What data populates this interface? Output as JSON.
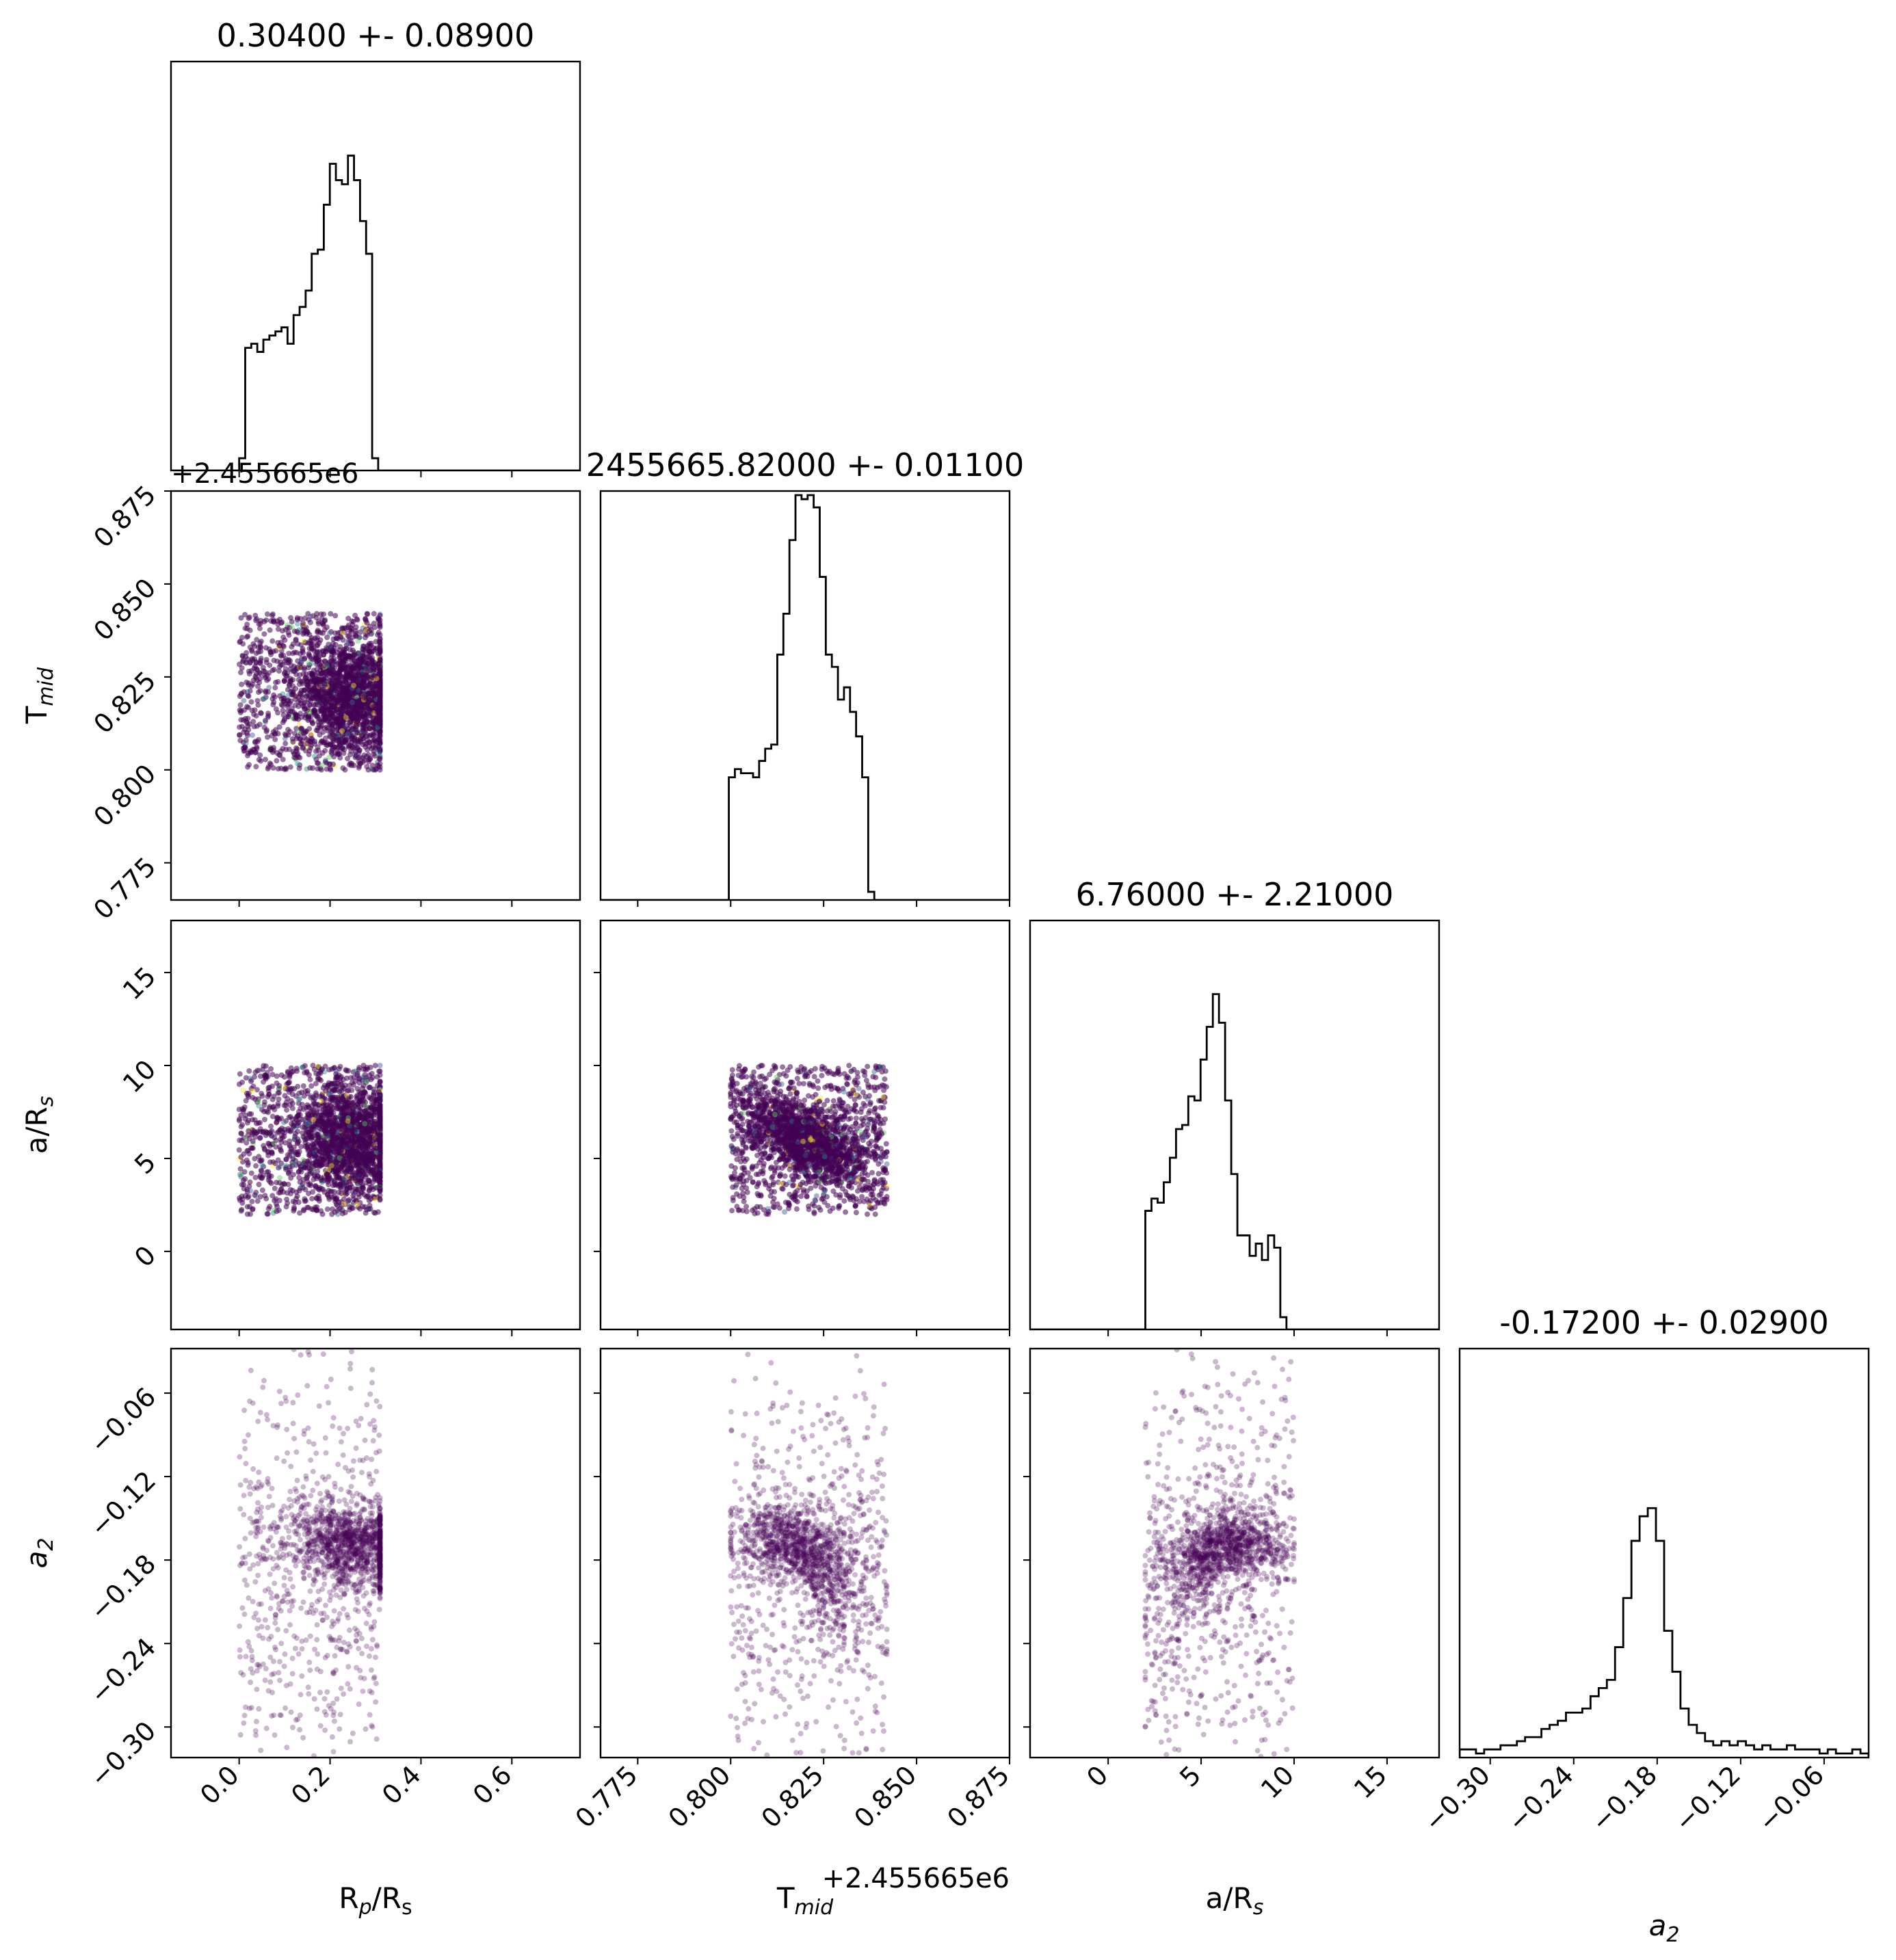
{
  "chart_data": {
    "type": "scatter",
    "layout": "corner",
    "colors": {
      "scatter_main": "#440154",
      "scatter_speckles": [
        "#3b528b",
        "#21918c",
        "#5ec962",
        "#fde725",
        "#31688e"
      ],
      "line": "#000000"
    },
    "parameters": [
      {
        "key": "rp",
        "label_base": "R",
        "label_sub": "p",
        "label_mid": "/R",
        "label_sub2": "s",
        "label_italic": false,
        "title": "0.30400 +- 0.08900",
        "range": [
          -0.15,
          0.75
        ],
        "ticks": [
          0.0,
          0.2,
          0.4,
          0.6
        ],
        "tick_labels": [
          "0.0",
          "0.2",
          "0.4",
          "0.6"
        ],
        "hist_bins": {
          "start": 0.0,
          "width": 0.0133,
          "counts": [
            0.03,
            0.3,
            0.31,
            0.29,
            0.32,
            0.33,
            0.34,
            0.35,
            0.31,
            0.38,
            0.4,
            0.44,
            0.53,
            0.54,
            0.65,
            0.75,
            0.71,
            0.7,
            0.77,
            0.71,
            0.61,
            0.53,
            0.03
          ]
        }
      },
      {
        "key": "tmid",
        "label_base": "T",
        "label_sub": "mid",
        "label_italic": false,
        "title": "2455665.82000 +- 0.01100",
        "offset_text": "+2.455665e6",
        "range": [
          0.765,
          0.875
        ],
        "ticks": [
          0.775,
          0.8,
          0.825,
          0.85,
          0.875
        ],
        "tick_labels": [
          "0.775",
          "0.800",
          "0.825",
          "0.850",
          "0.875"
        ],
        "hist_bins": {
          "start": 0.7995,
          "width": 0.00163,
          "counts": [
            0.3,
            0.32,
            0.31,
            0.31,
            0.3,
            0.34,
            0.37,
            0.38,
            0.6,
            0.7,
            0.88,
            0.99,
            0.98,
            0.99,
            0.96,
            0.79,
            0.6,
            0.57,
            0.49,
            0.52,
            0.46,
            0.4,
            0.3,
            0.02
          ]
        }
      },
      {
        "key": "ars",
        "label_base": "a/R",
        "label_sub": "s",
        "label_italic": false,
        "title": "6.76000 +- 2.21000",
        "range": [
          -4.2,
          17.8
        ],
        "ticks": [
          0,
          5,
          10,
          15
        ],
        "tick_labels": [
          "0",
          "5",
          "10",
          "15"
        ],
        "hist_bins": {
          "start": 2.0,
          "width": 0.33,
          "counts": [
            0.29,
            0.32,
            0.31,
            0.36,
            0.42,
            0.49,
            0.5,
            0.57,
            0.56,
            0.66,
            0.74,
            0.82,
            0.75,
            0.56,
            0.38,
            0.23,
            0.23,
            0.18,
            0.21,
            0.17,
            0.23,
            0.2,
            0.03
          ]
        }
      },
      {
        "key": "a2",
        "label_base": "a",
        "label_sub": "2",
        "label_italic": true,
        "title": "-0.17200 +- 0.02900",
        "range": [
          -0.322,
          -0.028
        ],
        "ticks": [
          -0.3,
          -0.24,
          -0.18,
          -0.12,
          -0.06
        ],
        "tick_labels": [
          "−0.30",
          "−0.24",
          "−0.18",
          "−0.12",
          "−0.06"
        ],
        "hist_bins": {
          "start": -0.322,
          "width": 0.00588,
          "counts": [
            0.02,
            0.02,
            0.01,
            0.02,
            0.02,
            0.03,
            0.03,
            0.04,
            0.05,
            0.05,
            0.07,
            0.08,
            0.09,
            0.11,
            0.11,
            0.12,
            0.15,
            0.17,
            0.19,
            0.27,
            0.39,
            0.53,
            0.59,
            0.61,
            0.53,
            0.31,
            0.21,
            0.12,
            0.08,
            0.06,
            0.04,
            0.03,
            0.04,
            0.03,
            0.04,
            0.03,
            0.02,
            0.03,
            0.02,
            0.02,
            0.03,
            0.02,
            0.02,
            0.02,
            0.01,
            0.02,
            0.01,
            0.01,
            0.02,
            0.01
          ]
        }
      }
    ],
    "priors": {
      "rp": [
        0.0,
        0.31
      ],
      "tmid": [
        0.8,
        0.842
      ],
      "ars": [
        2.0,
        10.0
      ],
      "a2": [
        -0.322,
        -0.028
      ]
    },
    "centers": {
      "rp": 0.25,
      "tmid": 0.82,
      "ars": 6.0,
      "a2": -0.172
    }
  }
}
